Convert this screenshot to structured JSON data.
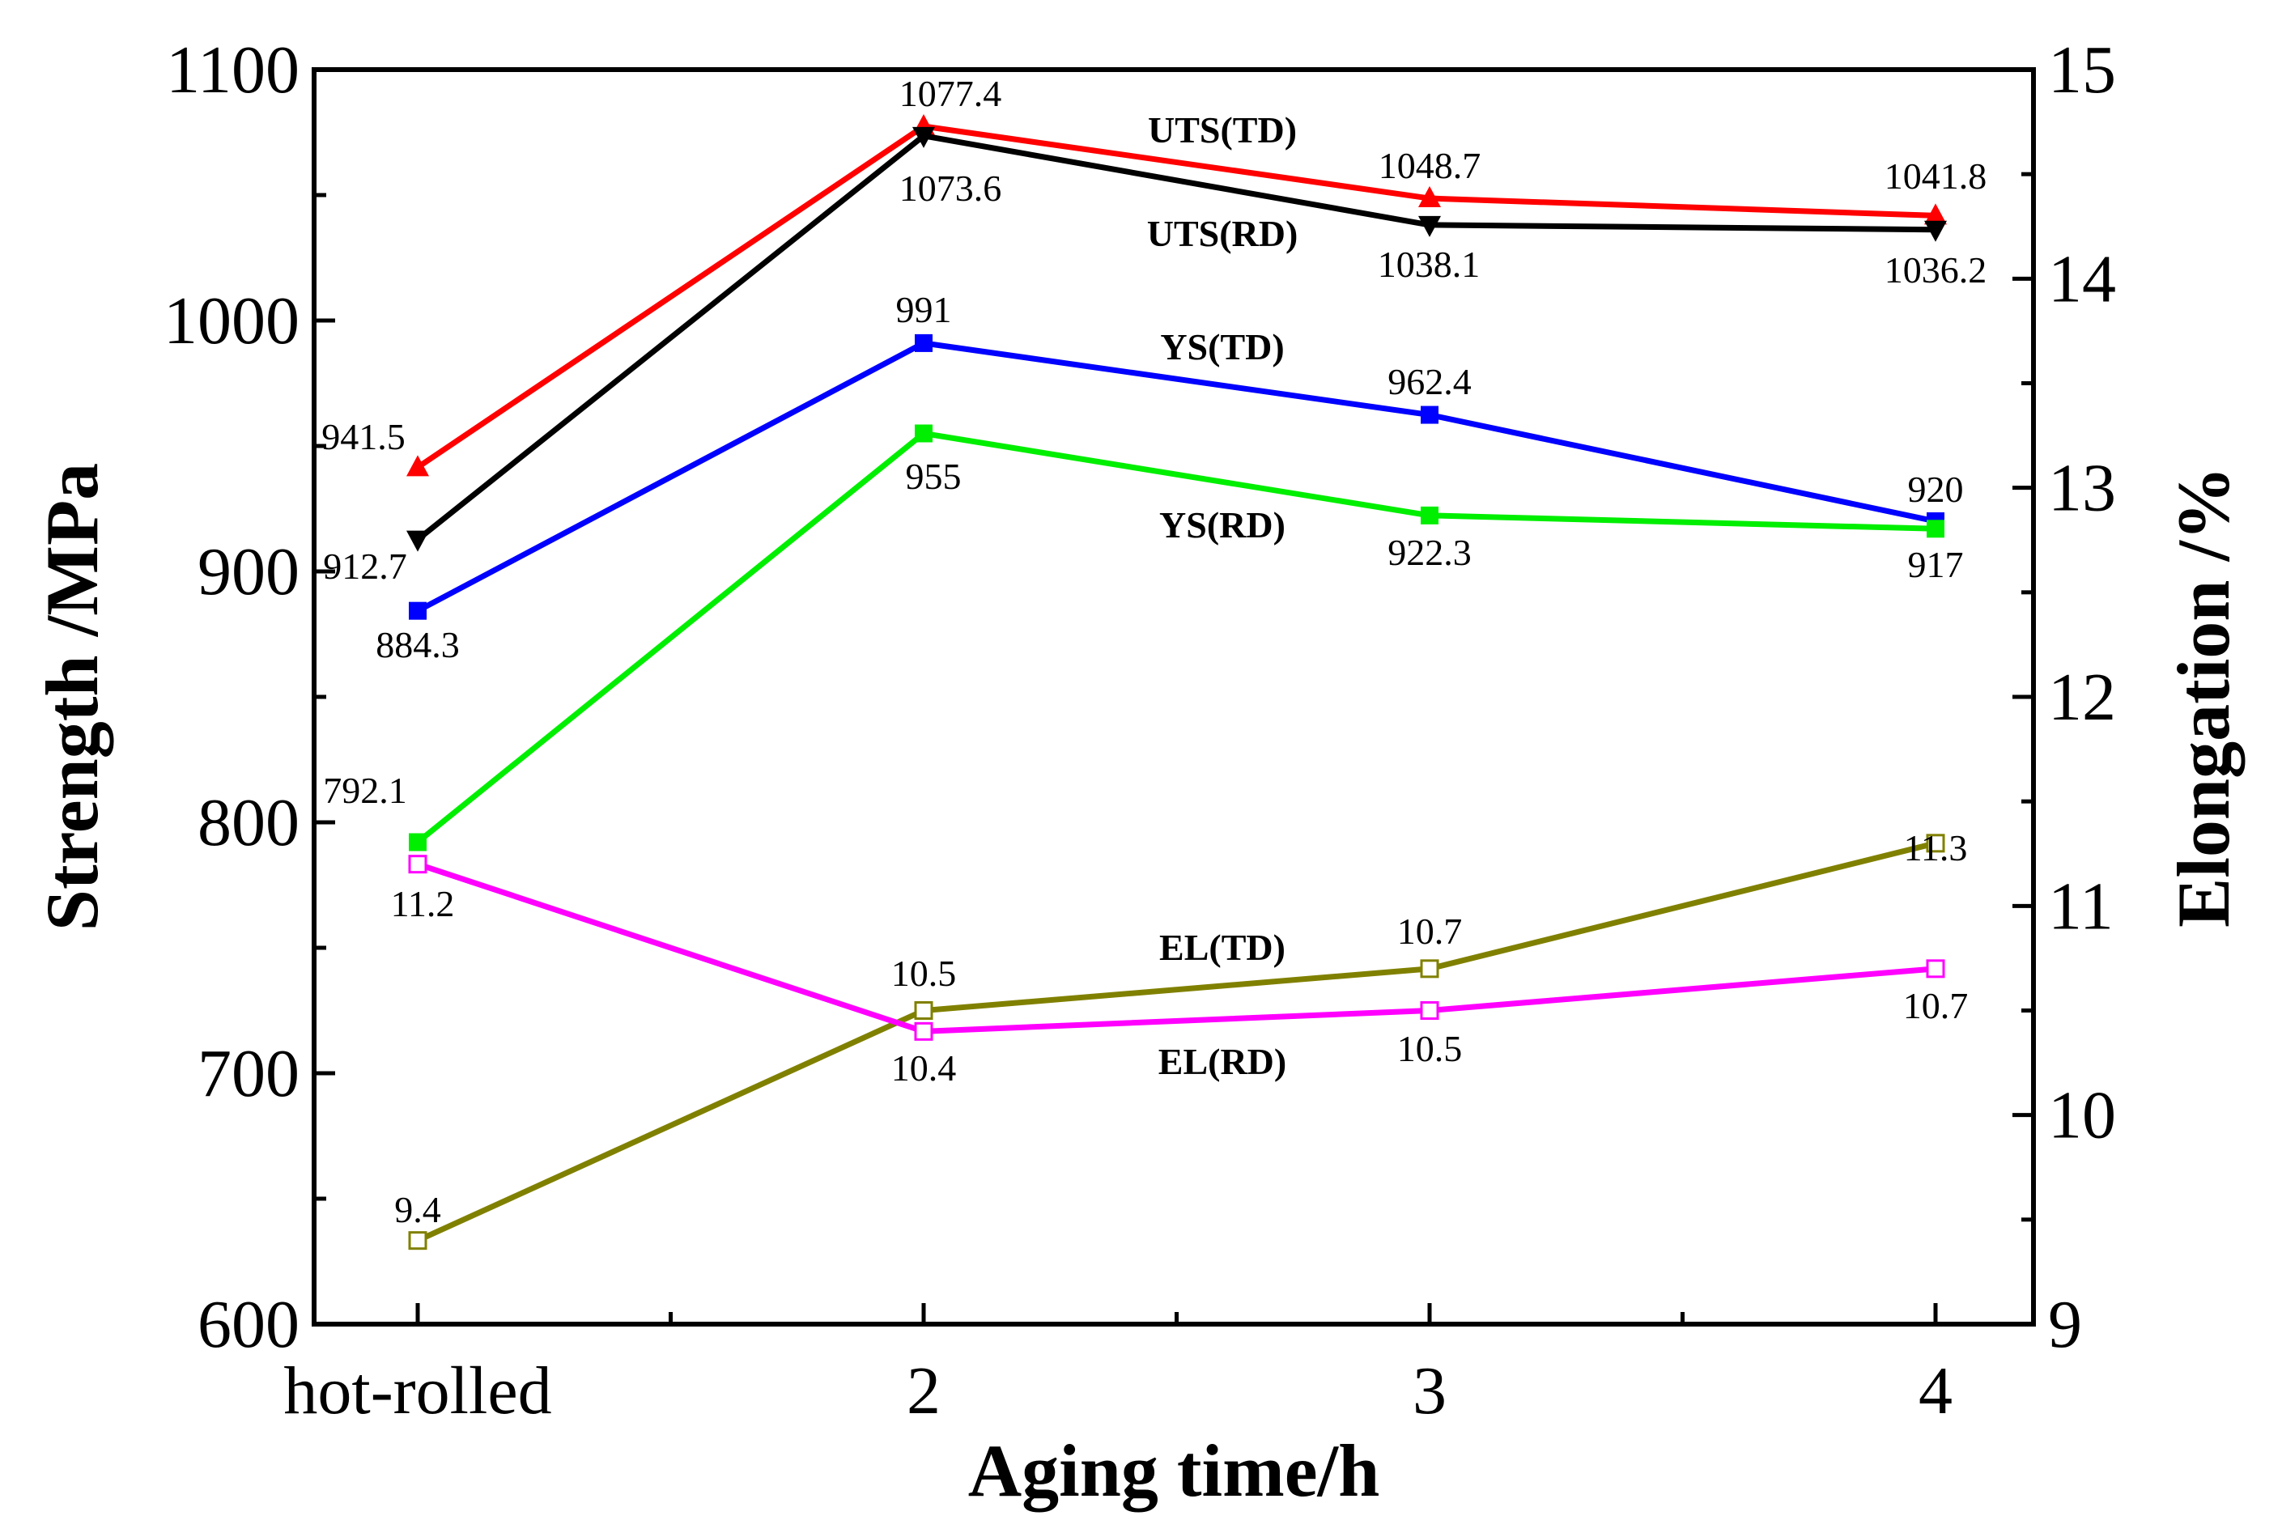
{
  "chart_data": {
    "type": "line",
    "title": "",
    "xlabel": "Aging time/h",
    "ylabel": "Strength /MPa",
    "y2label": "Elongation /%",
    "categories": [
      "hot-rolled",
      "2",
      "3",
      "4"
    ],
    "ylim": [
      600,
      1100
    ],
    "y2lim": [
      9,
      15
    ],
    "yticks": [
      600,
      700,
      800,
      900,
      1000,
      1100
    ],
    "y2ticks": [
      9,
      10,
      11,
      12,
      13,
      14,
      15
    ],
    "series": [
      {
        "name": "UTS(TD)",
        "axis": "left",
        "color": "#ff0000",
        "marker": "triangle-up",
        "filled": true,
        "values": [
          941.5,
          1077.4,
          1048.7,
          1041.8
        ],
        "labels": [
          "941.5",
          "1077.4",
          "1048.7",
          "1041.8"
        ]
      },
      {
        "name": "UTS(RD)",
        "axis": "left",
        "color": "#000000",
        "marker": "triangle-down",
        "filled": true,
        "values": [
          912.7,
          1073.6,
          1038.1,
          1036.2
        ],
        "labels": [
          "912.7",
          "1073.6",
          "1038.1",
          "1036.2"
        ]
      },
      {
        "name": "YS(TD)",
        "axis": "left",
        "color": "#0000ff",
        "marker": "square",
        "filled": true,
        "values": [
          884.3,
          991,
          962.4,
          920
        ],
        "labels": [
          "884.3",
          "991",
          "962.4",
          "920"
        ]
      },
      {
        "name": "YS(RD)",
        "axis": "left",
        "color": "#00ee00",
        "marker": "square",
        "filled": true,
        "values": [
          792.1,
          955,
          922.3,
          917
        ],
        "labels": [
          "792.1",
          "955",
          "922.3",
          "917"
        ]
      },
      {
        "name": "EL(TD)",
        "axis": "right",
        "color": "#808000",
        "marker": "square",
        "filled": false,
        "values": [
          9.4,
          10.5,
          10.7,
          11.3
        ],
        "labels": [
          "9.4",
          "10.5",
          "10.7",
          "11.3"
        ]
      },
      {
        "name": "EL(RD)",
        "axis": "right",
        "color": "#ff00ff",
        "marker": "square",
        "filled": false,
        "values": [
          11.2,
          10.4,
          10.5,
          10.7
        ],
        "labels": [
          "11.2",
          "10.4",
          "10.5",
          "10.7"
        ]
      }
    ]
  }
}
